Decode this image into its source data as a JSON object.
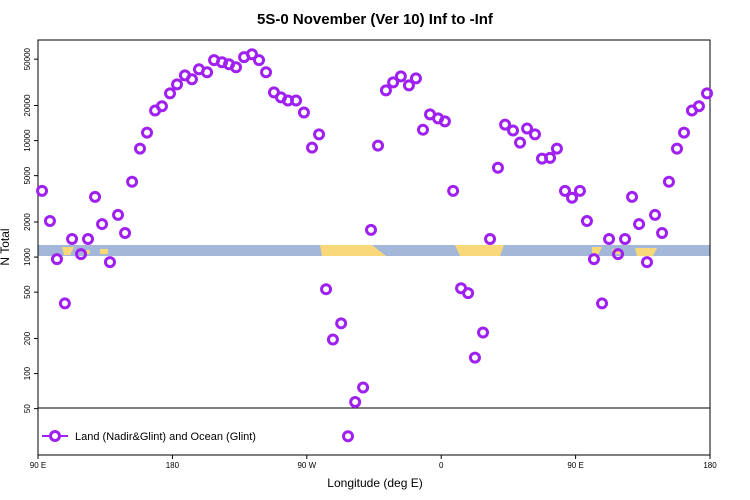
{
  "chart_data": {
    "type": "scatter",
    "title": "5S-0 November (Ver 10)   Inf to -Inf",
    "x_label": "Longitude (deg E)",
    "y_label": "N Total",
    "log_y": true,
    "xlim": [
      90,
      540
    ],
    "xticks": [
      {
        "value": 90,
        "label": "90 E"
      },
      180,
      {
        "value": 270,
        "label": "90 W"
      },
      {
        "value": 360,
        "label": "0"
      },
      {
        "value": 450,
        "label": "90 E"
      },
      {
        "value": 540,
        "label": "180"
      }
    ],
    "ylim": [
      20,
      73000
    ],
    "yticks": [
      50,
      100,
      200,
      500,
      1000,
      2000,
      5000,
      10000,
      20000,
      50000
    ],
    "legend": "bottom-left",
    "series": [
      {
        "name": "Land (Nadir&Glint) and Ocean (Glint)",
        "color": "#a020f0",
        "x": [
          92.7,
          98,
          102.7,
          108,
          112.8,
          118.8,
          123.5,
          128.2,
          132.9,
          138.2,
          143.6,
          148.3,
          153,
          158.3,
          163,
          168.4,
          173,
          178.4,
          183.1,
          188.4,
          193.1,
          197.8,
          203.2,
          207.9,
          213.2,
          217.9,
          222.6,
          228,
          233.3,
          238,
          242.7,
          248,
          252.7,
          257.4,
          262.8,
          268.1,
          273.5,
          278.2,
          282.9,
          287.5,
          293,
          297.6,
          302.4,
          307.7,
          313,
          317.7,
          323,
          327.8,
          333,
          338.4,
          343.1,
          347.8,
          352.5,
          357.9,
          362.5,
          368,
          373.3,
          378,
          382.6,
          388,
          392.7,
          398,
          402.8,
          408.1,
          412.8,
          417.5,
          422.8,
          427.5,
          432.9,
          437.5,
          442.9,
          447.6,
          452.9,
          457.6,
          462.3,
          467.7,
          472.4,
          478.4,
          483.1,
          487.8,
          492.5,
          497.8,
          503.2,
          507.9,
          512.5,
          517.9,
          522.6,
          527.9,
          532.6,
          538
        ],
        "values": [
          3700,
          2040,
          960,
          400,
          1430,
          1060,
          1430,
          3290,
          1920,
          905,
          2300,
          1610,
          4430,
          8530,
          11700,
          18100,
          19700,
          25400,
          30400,
          36300,
          33600,
          40900,
          38600,
          49000,
          47000,
          45200,
          42600,
          52000,
          55100,
          49000,
          38600,
          25900,
          23500,
          22100,
          22100,
          17400,
          8700,
          11300,
          530,
          196,
          270,
          29,
          57,
          76,
          1710,
          9050,
          27000,
          31600,
          35600,
          29800,
          34200,
          12400,
          16800,
          15500,
          14600,
          3700,
          540,
          490,
          137,
          225,
          1430,
          5850,
          13700,
          12200,
          9600,
          12700,
          11300,
          7000,
          7100,
          8530,
          3700,
          3230,
          3700,
          2040,
          960,
          400,
          1430,
          1060,
          1430,
          3290,
          1920,
          905,
          2300,
          1610,
          4430,
          8530,
          11700,
          18100,
          19700,
          25400
        ]
      }
    ]
  }
}
